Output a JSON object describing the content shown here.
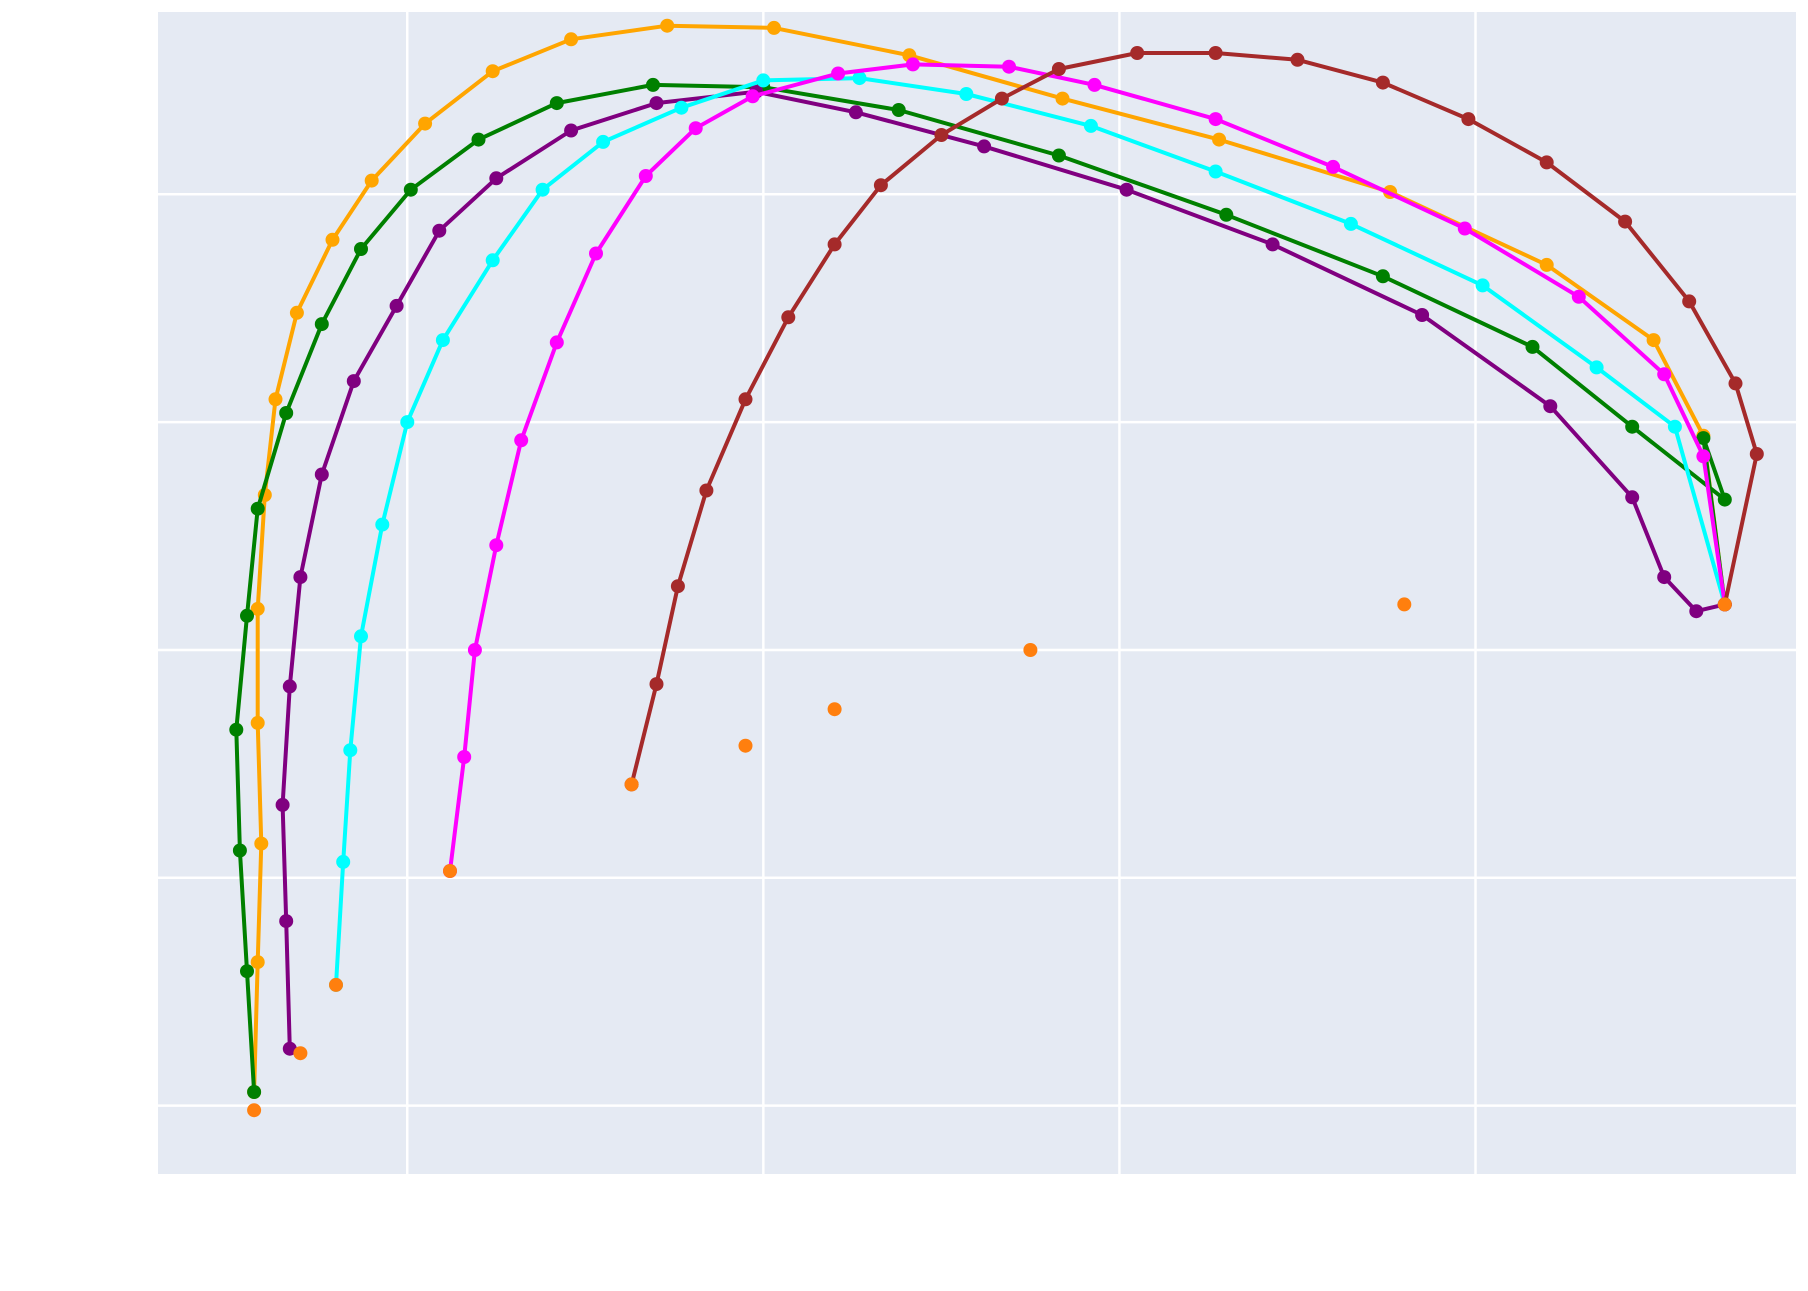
{
  "chart_data": {
    "type": "line",
    "title": "",
    "xlabel": "",
    "ylabel": "",
    "grid": true,
    "legend": "none",
    "xlim": [
      -0.7,
      3.9
    ],
    "ylim": [
      -0.3,
      4.8
    ],
    "x_gridlines": [
      0,
      1,
      2,
      3
    ],
    "y_gridlines": [
      0,
      1,
      2,
      3,
      4
    ],
    "plot_background": "#e5eaf3",
    "series": [
      {
        "color": "#ffa500",
        "points": [
          [
            -0.43,
            0.06
          ],
          [
            -0.42,
            0.63
          ],
          [
            -0.41,
            1.15
          ],
          [
            -0.42,
            1.68
          ],
          [
            -0.42,
            2.18
          ],
          [
            -0.4,
            2.68
          ],
          [
            -0.37,
            3.1
          ],
          [
            -0.31,
            3.48
          ],
          [
            -0.21,
            3.8
          ],
          [
            -0.1,
            4.06
          ],
          [
            0.05,
            4.31
          ],
          [
            0.24,
            4.54
          ],
          [
            0.46,
            4.68
          ],
          [
            0.73,
            4.74
          ],
          [
            1.03,
            4.73
          ],
          [
            1.41,
            4.61
          ],
          [
            1.84,
            4.42
          ],
          [
            2.28,
            4.24
          ],
          [
            2.76,
            4.01
          ],
          [
            3.2,
            3.69
          ],
          [
            3.5,
            3.36
          ],
          [
            3.64,
            2.94
          ],
          [
            3.7,
            2.2
          ]
        ]
      },
      {
        "color": "#008000",
        "points": [
          [
            -0.43,
            0.06
          ],
          [
            -0.45,
            0.59
          ],
          [
            -0.47,
            1.12
          ],
          [
            -0.48,
            1.65
          ],
          [
            -0.45,
            2.15
          ],
          [
            -0.42,
            2.62
          ],
          [
            -0.34,
            3.04
          ],
          [
            -0.24,
            3.43
          ],
          [
            -0.13,
            3.76
          ],
          [
            0.01,
            4.02
          ],
          [
            0.2,
            4.24
          ],
          [
            0.42,
            4.4
          ],
          [
            0.69,
            4.48
          ],
          [
            1.0,
            4.47
          ],
          [
            1.38,
            4.37
          ],
          [
            1.83,
            4.17
          ],
          [
            2.3,
            3.91
          ],
          [
            2.74,
            3.64
          ],
          [
            3.16,
            3.33
          ],
          [
            3.44,
            2.98
          ],
          [
            3.7,
            2.66
          ],
          [
            3.64,
            2.93
          ],
          [
            3.7,
            2.2
          ]
        ]
      },
      {
        "color": "#800080",
        "points": [
          [
            -0.33,
            0.25
          ],
          [
            -0.34,
            0.81
          ],
          [
            -0.35,
            1.32
          ],
          [
            -0.33,
            1.84
          ],
          [
            -0.3,
            2.32
          ],
          [
            -0.24,
            2.77
          ],
          [
            -0.15,
            3.18
          ],
          [
            -0.03,
            3.51
          ],
          [
            0.09,
            3.84
          ],
          [
            0.25,
            4.07
          ],
          [
            0.46,
            4.28
          ],
          [
            0.7,
            4.4
          ],
          [
            0.98,
            4.45
          ],
          [
            1.26,
            4.36
          ],
          [
            1.62,
            4.21
          ],
          [
            2.02,
            4.02
          ],
          [
            2.43,
            3.78
          ],
          [
            2.85,
            3.47
          ],
          [
            3.21,
            3.07
          ],
          [
            3.44,
            2.67
          ],
          [
            3.53,
            2.32
          ],
          [
            3.62,
            2.17
          ],
          [
            3.7,
            2.2
          ]
        ]
      },
      {
        "color": "#00ffff",
        "points": [
          [
            -0.2,
            0.53
          ],
          [
            -0.18,
            1.07
          ],
          [
            -0.16,
            1.56
          ],
          [
            -0.13,
            2.06
          ],
          [
            -0.07,
            2.55
          ],
          [
            0.0,
            3.0
          ],
          [
            0.1,
            3.36
          ],
          [
            0.24,
            3.71
          ],
          [
            0.38,
            4.02
          ],
          [
            0.55,
            4.23
          ],
          [
            0.77,
            4.38
          ],
          [
            1.0,
            4.5
          ],
          [
            1.27,
            4.51
          ],
          [
            1.57,
            4.44
          ],
          [
            1.92,
            4.3
          ],
          [
            2.27,
            4.1
          ],
          [
            2.65,
            3.87
          ],
          [
            3.02,
            3.6
          ],
          [
            3.34,
            3.24
          ],
          [
            3.56,
            2.98
          ],
          [
            3.7,
            2.2
          ]
        ]
      },
      {
        "color": "#ff00ff",
        "points": [
          [
            0.12,
            1.03
          ],
          [
            0.16,
            1.53
          ],
          [
            0.19,
            2.0
          ],
          [
            0.25,
            2.46
          ],
          [
            0.32,
            2.92
          ],
          [
            0.42,
            3.35
          ],
          [
            0.53,
            3.74
          ],
          [
            0.67,
            4.08
          ],
          [
            0.81,
            4.29
          ],
          [
            0.97,
            4.43
          ],
          [
            1.21,
            4.53
          ],
          [
            1.42,
            4.57
          ],
          [
            1.69,
            4.56
          ],
          [
            1.93,
            4.48
          ],
          [
            2.27,
            4.33
          ],
          [
            2.6,
            4.12
          ],
          [
            2.97,
            3.85
          ],
          [
            3.29,
            3.55
          ],
          [
            3.53,
            3.21
          ],
          [
            3.64,
            2.85
          ],
          [
            3.7,
            2.2
          ]
        ]
      },
      {
        "color": "#a52a2a",
        "points": [
          [
            0.63,
            1.41
          ],
          [
            0.7,
            1.85
          ],
          [
            0.76,
            2.28
          ],
          [
            0.84,
            2.7
          ],
          [
            0.95,
            3.1
          ],
          [
            1.07,
            3.46
          ],
          [
            1.2,
            3.78
          ],
          [
            1.33,
            4.04
          ],
          [
            1.5,
            4.26
          ],
          [
            1.67,
            4.42
          ],
          [
            1.83,
            4.55
          ],
          [
            2.05,
            4.62
          ],
          [
            2.27,
            4.62
          ],
          [
            2.5,
            4.59
          ],
          [
            2.74,
            4.49
          ],
          [
            2.98,
            4.33
          ],
          [
            3.2,
            4.14
          ],
          [
            3.42,
            3.88
          ],
          [
            3.6,
            3.53
          ],
          [
            3.73,
            3.17
          ],
          [
            3.79,
            2.86
          ],
          [
            3.7,
            2.2
          ]
        ]
      }
    ],
    "standalone_points": {
      "color": "#ff7f0e",
      "points": [
        [
          -0.43,
          -0.02
        ],
        [
          -0.3,
          0.23
        ],
        [
          -0.2,
          0.53
        ],
        [
          0.12,
          1.03
        ],
        [
          0.63,
          1.41
        ],
        [
          0.95,
          1.58
        ],
        [
          1.2,
          1.74
        ],
        [
          1.75,
          2.0
        ],
        [
          2.8,
          2.2
        ],
        [
          3.7,
          2.2
        ]
      ]
    }
  }
}
